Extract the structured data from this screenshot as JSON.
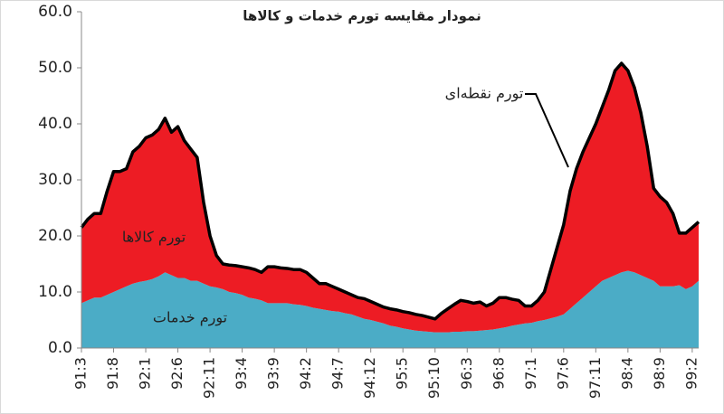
{
  "chart_data": {
    "type": "area",
    "title": "نمودار مقایسه تورم خدمات و کالاها",
    "categories": [
      "91:3",
      null,
      null,
      null,
      null,
      "91:8",
      null,
      null,
      null,
      null,
      "92:1",
      null,
      null,
      null,
      null,
      "92:6",
      null,
      null,
      null,
      null,
      "92:11",
      null,
      null,
      null,
      null,
      "93:4",
      null,
      null,
      null,
      null,
      "93:9",
      null,
      null,
      null,
      null,
      "94:2",
      null,
      null,
      null,
      null,
      "94:7",
      null,
      null,
      null,
      null,
      "94:12",
      null,
      null,
      null,
      null,
      "95:5",
      null,
      null,
      null,
      null,
      "95:10",
      null,
      null,
      null,
      null,
      "96:3",
      null,
      null,
      null,
      null,
      "96:8",
      null,
      null,
      null,
      null,
      "97:1",
      null,
      null,
      null,
      null,
      "97:6",
      null,
      null,
      null,
      null,
      "97:11",
      null,
      null,
      null,
      null,
      "98:4",
      null,
      null,
      null,
      null,
      "98:9",
      null,
      null,
      null,
      null,
      "99:2",
      null
    ],
    "series": [
      {
        "name": "تورم خدمات",
        "type": "area",
        "color": "#4bacc6",
        "values": [
          8,
          8.5,
          9,
          9,
          9.5,
          10,
          10.5,
          11,
          11.5,
          11.8,
          12,
          12.3,
          12.8,
          13.5,
          13,
          12.5,
          12.5,
          12,
          12,
          11.5,
          11,
          10.8,
          10.5,
          10,
          9.8,
          9.5,
          9,
          8.8,
          8.5,
          8,
          8,
          8,
          8,
          7.8,
          7.7,
          7.5,
          7.2,
          7,
          6.8,
          6.6,
          6.5,
          6.2,
          6,
          5.6,
          5.2,
          5,
          4.7,
          4.4,
          4,
          3.8,
          3.5,
          3.3,
          3.1,
          3,
          2.9,
          2.8,
          2.8,
          2.8,
          2.9,
          2.9,
          3,
          3,
          3.1,
          3.2,
          3.3,
          3.5,
          3.7,
          4,
          4.2,
          4.4,
          4.5,
          4.8,
          5,
          5.3,
          5.6,
          6,
          7,
          8,
          9,
          10,
          11,
          12,
          12.5,
          13,
          13.5,
          13.8,
          13.5,
          13,
          12.5,
          12,
          11,
          11,
          11,
          11.2,
          10.5,
          11,
          12
        ]
      },
      {
        "name": "تورم کالاها",
        "type": "area",
        "color": "#ed1c24",
        "values": [
          13.5,
          14.5,
          15,
          15,
          18.5,
          21.5,
          21,
          21,
          23.5,
          24.2,
          25.5,
          25.7,
          26.2,
          27.5,
          25.5,
          27,
          24.5,
          23.5,
          22,
          14.5,
          9,
          5.7,
          4.5,
          4.8,
          4.9,
          5,
          5.3,
          5.2,
          5,
          6.5,
          6.5,
          6.3,
          6.2,
          6.2,
          6.3,
          6,
          5.3,
          4.5,
          4.7,
          4.4,
          4,
          3.8,
          3.5,
          3.4,
          3.6,
          3.3,
          3.1,
          2.9,
          3,
          3,
          3,
          3,
          2.9,
          2.8,
          2.6,
          2.4,
          3.4,
          4.2,
          4.9,
          5.6,
          5.3,
          5,
          5.1,
          4.3,
          4.7,
          5.5,
          5.3,
          4.7,
          4.3,
          3.1,
          3,
          3.7,
          5,
          8.7,
          12.4,
          16,
          21,
          24,
          26,
          27.5,
          29,
          31,
          33.5,
          36.5,
          37.3,
          35.7,
          33,
          29,
          23.5,
          16.5,
          16,
          15,
          13,
          9.3,
          10,
          10.5,
          10.5
        ]
      },
      {
        "name": "تورم نقطه‌ای",
        "type": "line",
        "color": "#000000",
        "values": [
          21.5,
          23,
          24,
          24,
          28,
          31.5,
          31.5,
          32,
          35,
          36,
          37.5,
          38,
          39,
          41,
          38.5,
          39.5,
          37,
          35.5,
          34,
          26,
          20,
          16.5,
          15,
          14.8,
          14.7,
          14.5,
          14.3,
          14,
          13.5,
          14.5,
          14.5,
          14.3,
          14.2,
          14,
          14,
          13.5,
          12.5,
          11.5,
          11.5,
          11,
          10.5,
          10,
          9.5,
          9,
          8.8,
          8.3,
          7.8,
          7.3,
          7,
          6.8,
          6.5,
          6.3,
          6,
          5.8,
          5.5,
          5.2,
          6.2,
          7,
          7.8,
          8.5,
          8.3,
          8,
          8.2,
          7.5,
          8,
          9,
          9,
          8.7,
          8.5,
          7.5,
          7.5,
          8.5,
          10,
          14,
          18,
          22,
          28,
          32,
          35,
          37.5,
          40,
          43,
          46,
          49.5,
          50.8,
          49.5,
          46.5,
          42,
          36,
          28.5,
          27,
          26,
          24,
          20.5,
          20.5,
          21.5,
          22.5
        ]
      }
    ],
    "ylim": [
      0,
      60
    ],
    "yticks": [
      {
        "value": 0,
        "label": "0.0"
      },
      {
        "value": 10,
        "label": "10.0"
      },
      {
        "value": 20,
        "label": "20.0"
      },
      {
        "value": 30,
        "label": "30.0"
      },
      {
        "value": 40,
        "label": "40.0"
      },
      {
        "value": 50,
        "label": "50.0"
      },
      {
        "value": 60,
        "label": "60.0"
      }
    ]
  }
}
